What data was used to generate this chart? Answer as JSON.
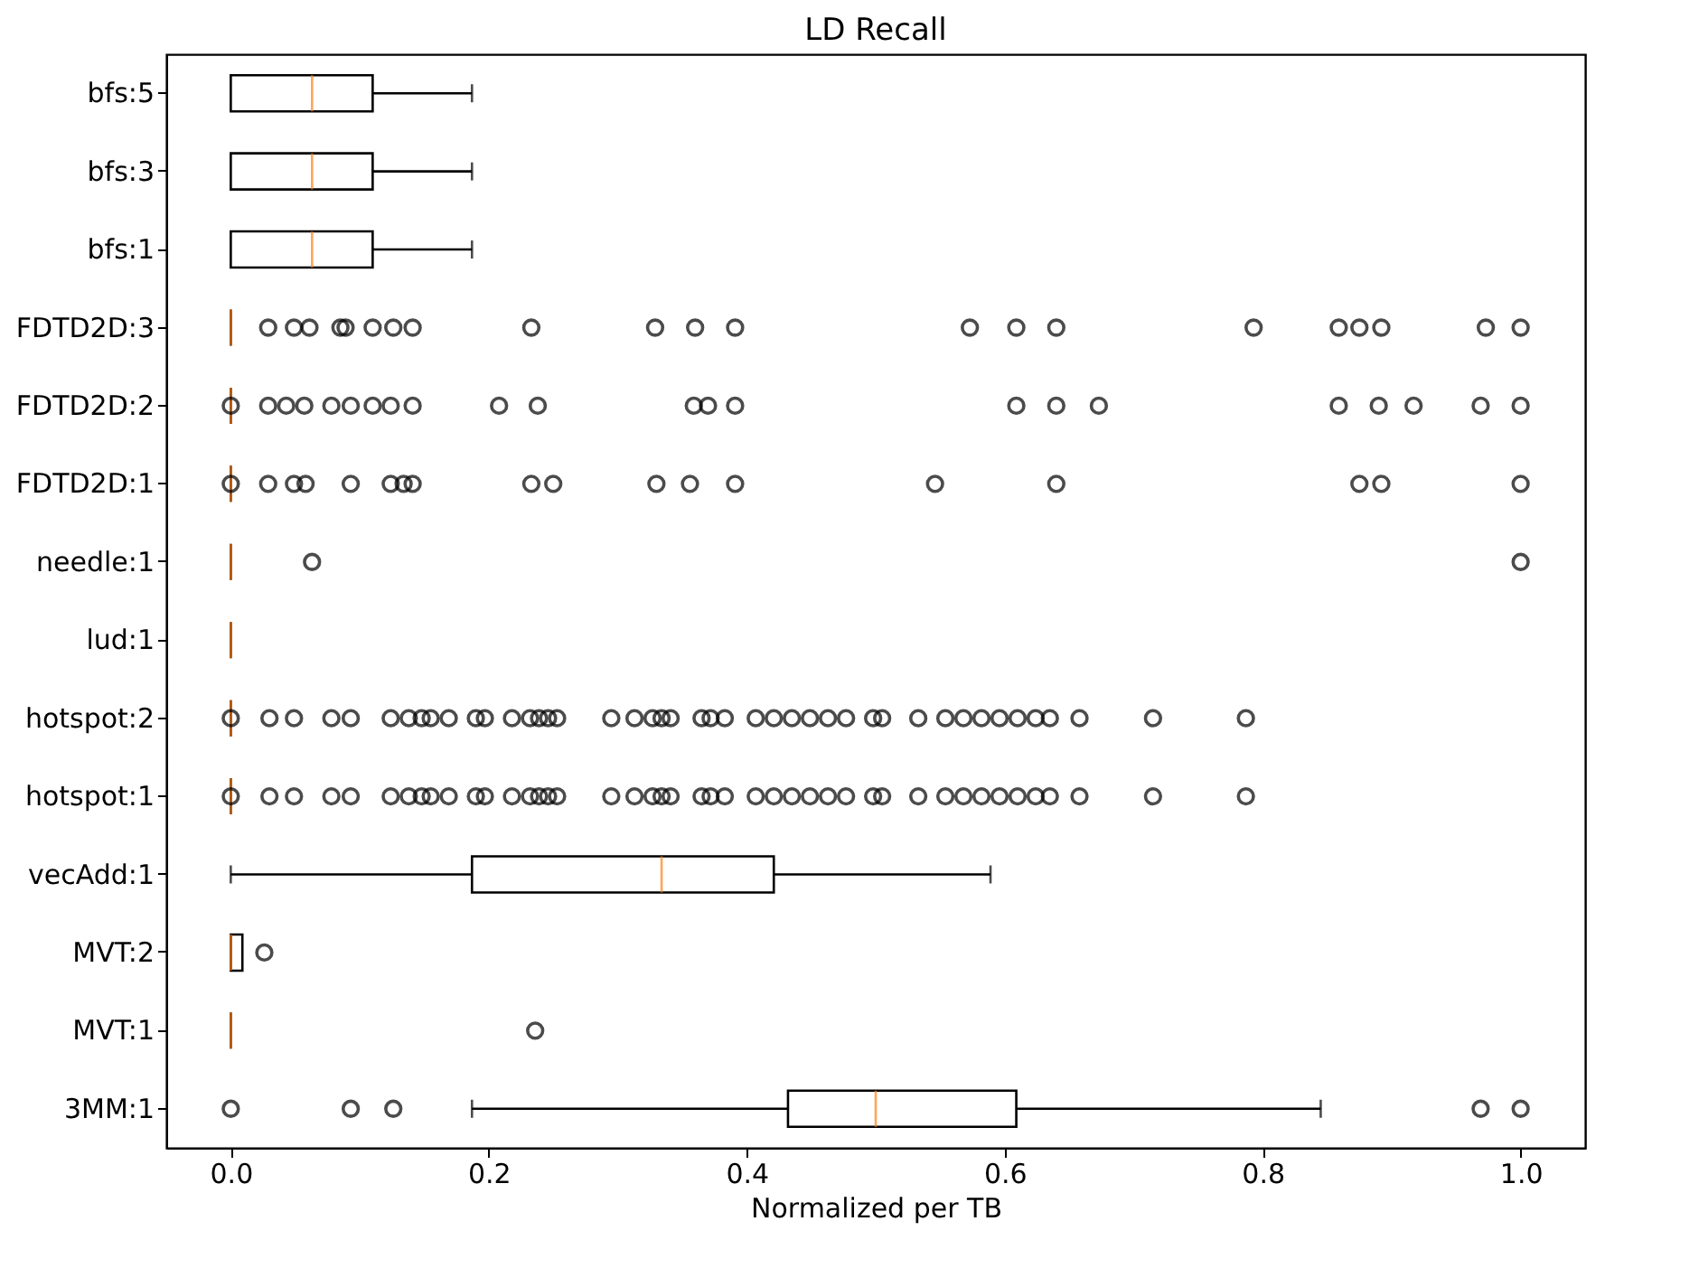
{
  "chart_data": {
    "type": "box",
    "orientation": "horizontal",
    "title": "LD Recall",
    "xlabel": "Normalized per TB",
    "categories": [
      "bfs:5",
      "bfs:3",
      "bfs:1",
      "FDTD2D:3",
      "FDTD2D:2",
      "FDTD2D:1",
      "needle:1",
      "lud:1",
      "hotspot:2",
      "hotspot:1",
      "vecAdd:1",
      "MVT:2",
      "MVT:1",
      "3MM:1"
    ],
    "xlim": [
      -0.05,
      1.05
    ],
    "xticks": [
      {
        "value": 0,
        "label": "0.0"
      },
      {
        "value": 0.2,
        "label": "0.2"
      },
      {
        "value": 0.4,
        "label": "0.4"
      },
      {
        "value": 0.6,
        "label": "0.6"
      },
      {
        "value": 0.8,
        "label": "0.8"
      },
      {
        "value": 1,
        "label": "1.0"
      }
    ],
    "boxes": [
      {
        "low": 0,
        "q1": 0,
        "median": 0.063,
        "q3": 0.11,
        "high": 0.187
      },
      {
        "low": 0,
        "q1": 0,
        "median": 0.063,
        "q3": 0.11,
        "high": 0.187
      },
      {
        "low": 0,
        "q1": 0,
        "median": 0.063,
        "q3": 0.11,
        "high": 0.187
      },
      {
        "low": 0,
        "q1": 0,
        "median": 0,
        "q3": 0,
        "high": 0,
        "outliers": [
          0.029,
          0.049,
          0.061,
          0.085,
          0.089,
          0.11,
          0.126,
          0.141,
          0.233,
          0.329,
          0.36,
          0.391,
          0.573,
          0.609,
          0.64,
          0.793,
          0.859,
          0.875,
          0.892,
          0.973,
          1.0
        ]
      },
      {
        "low": 0,
        "q1": 0,
        "median": 0,
        "q3": 0,
        "high": 0,
        "outliers": [
          0,
          0.029,
          0.043,
          0.057,
          0.078,
          0.093,
          0.11,
          0.124,
          0.141,
          0.208,
          0.238,
          0.359,
          0.37,
          0.391,
          0.609,
          0.64,
          0.673,
          0.859,
          0.89,
          0.917,
          0.969,
          1.0
        ]
      },
      {
        "low": 0,
        "q1": 0,
        "median": 0,
        "q3": 0,
        "high": 0,
        "outliers": [
          0,
          0.029,
          0.049,
          0.058,
          0.093,
          0.124,
          0.134,
          0.141,
          0.233,
          0.25,
          0.33,
          0.356,
          0.391,
          0.546,
          0.64,
          0.875,
          0.892,
          1.0
        ]
      },
      {
        "low": 0,
        "q1": 0,
        "median": 0,
        "q3": 0,
        "high": 0,
        "outliers": [
          0.063,
          1.0
        ]
      },
      {
        "low": 0,
        "q1": 0,
        "median": 0,
        "q3": 0,
        "high": 0
      },
      {
        "low": 0,
        "q1": 0,
        "median": 0,
        "q3": 0,
        "high": 0,
        "outliers": [
          0,
          0.03,
          0.049,
          0.078,
          0.093,
          0.124,
          0.138,
          0.148,
          0.155,
          0.169,
          0.19,
          0.197,
          0.218,
          0.232,
          0.239,
          0.246,
          0.253,
          0.295,
          0.313,
          0.327,
          0.334,
          0.341,
          0.365,
          0.372,
          0.383,
          0.407,
          0.421,
          0.435,
          0.449,
          0.463,
          0.477,
          0.498,
          0.505,
          0.533,
          0.554,
          0.568,
          0.582,
          0.596,
          0.61,
          0.624,
          0.635,
          0.658,
          0.715,
          0.787
        ]
      },
      {
        "low": 0,
        "q1": 0,
        "median": 0,
        "q3": 0,
        "high": 0,
        "outliers": [
          0,
          0.03,
          0.049,
          0.078,
          0.093,
          0.124,
          0.138,
          0.148,
          0.155,
          0.169,
          0.19,
          0.197,
          0.218,
          0.232,
          0.239,
          0.246,
          0.253,
          0.295,
          0.313,
          0.327,
          0.334,
          0.341,
          0.365,
          0.372,
          0.383,
          0.407,
          0.421,
          0.435,
          0.449,
          0.463,
          0.477,
          0.498,
          0.505,
          0.533,
          0.554,
          0.568,
          0.582,
          0.596,
          0.61,
          0.624,
          0.635,
          0.658,
          0.715,
          0.787
        ]
      },
      {
        "low": 0,
        "q1": 0.187,
        "median": 0.334,
        "q3": 0.421,
        "high": 0.589
      },
      {
        "low": 0,
        "q1": 0,
        "median": 0,
        "q3": 0.009,
        "high": 0.009,
        "outliers": [
          0.026
        ]
      },
      {
        "low": 0,
        "q1": 0,
        "median": 0,
        "q3": 0,
        "high": 0,
        "outliers": [
          0.236
        ]
      },
      {
        "low": 0.187,
        "q1": 0.432,
        "median": 0.5,
        "q3": 0.609,
        "high": 0.845,
        "outliers": [
          0,
          0.093,
          0.126,
          0.969,
          1.0
        ]
      }
    ]
  }
}
